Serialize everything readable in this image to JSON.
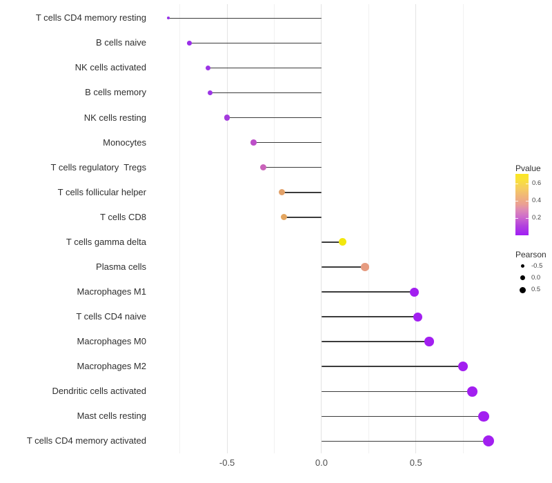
{
  "chart_data": {
    "type": "scatter",
    "subtype": "lollipop",
    "title": "",
    "xlabel": "",
    "ylabel": "",
    "xlim": [
      -0.895,
      0.965
    ],
    "x_major_ticks": [
      {
        "value": -0.5,
        "label": "-0.5"
      },
      {
        "value": 0.0,
        "label": "0.0"
      },
      {
        "value": 0.5,
        "label": "0.5"
      }
    ],
    "x_minor_gridlines": [
      -0.75,
      -0.25,
      0.25,
      0.75
    ],
    "grid": "vertical-only",
    "points": [
      {
        "label": "T cells CD4 memory resting",
        "pearson": -0.81,
        "pvalue_est": 0.01,
        "color": "#9732e8",
        "radius_px": 1.9
      },
      {
        "label": "B cells naive",
        "pearson": -0.7,
        "pvalue_est": 0.02,
        "color": "#9a2fe8",
        "radius_px": 3.3
      },
      {
        "label": "NK cells activated",
        "pearson": -0.6,
        "pvalue_est": 0.03,
        "color": "#9c35e5",
        "radius_px": 3.7
      },
      {
        "label": "B cells memory",
        "pearson": -0.59,
        "pvalue_est": 0.03,
        "color": "#9c35e5",
        "radius_px": 3.7
      },
      {
        "label": "NK cells resting",
        "pearson": -0.5,
        "pvalue_est": 0.06,
        "color": "#a43bdd",
        "radius_px": 4.3
      },
      {
        "label": "Monocytes",
        "pearson": -0.36,
        "pvalue_est": 0.13,
        "color": "#bc4ec8",
        "radius_px": 4.3
      },
      {
        "label": "T cells regulatory  Tregs",
        "pearson": -0.31,
        "pvalue_est": 0.18,
        "color": "#c963ba",
        "radius_px": 4.5
      },
      {
        "label": "T cells follicular helper",
        "pearson": -0.21,
        "pvalue_est": 0.38,
        "color": "#e2a169",
        "radius_px": 4.5
      },
      {
        "label": "T cells CD8",
        "pearson": -0.2,
        "pvalue_est": 0.4,
        "color": "#e3a55f",
        "radius_px": 4.6
      },
      {
        "label": "T cells gamma delta",
        "pearson": 0.11,
        "pvalue_est": 0.66,
        "color": "#f2e70d",
        "radius_px": 5.5
      },
      {
        "label": "Plasma cells",
        "pearson": 0.23,
        "pvalue_est": 0.44,
        "color": "#e69b80",
        "radius_px": 5.8
      },
      {
        "label": "Macrophages M1",
        "pearson": 0.49,
        "pvalue_est": 0.02,
        "color": "#a21ff0",
        "radius_px": 6.5
      },
      {
        "label": "T cells CD4 naive",
        "pearson": 0.51,
        "pvalue_est": 0.02,
        "color": "#a21ff0",
        "radius_px": 6.5
      },
      {
        "label": "Macrophages M0",
        "pearson": 0.57,
        "pvalue_est": 0.01,
        "color": "#a21ff0",
        "radius_px": 6.7
      },
      {
        "label": "Macrophages M2",
        "pearson": 0.75,
        "pvalue_est": 0.01,
        "color": "#a21ff0",
        "radius_px": 7.2
      },
      {
        "label": "Dendritic cells activated",
        "pearson": 0.8,
        "pvalue_est": 0.01,
        "color": "#a21ff0",
        "radius_px": 7.4
      },
      {
        "label": "Mast cells resting",
        "pearson": 0.86,
        "pvalue_est": 0.01,
        "color": "#a21ff0",
        "radius_px": 7.8
      },
      {
        "label": "T cells CD4 memory activated",
        "pearson": 0.885,
        "pvalue_est": 0.01,
        "color": "#a21ff0",
        "radius_px": 8.0
      }
    ],
    "legend": {
      "position": "right",
      "pvalue": {
        "title": "Pvalue",
        "range": [
          0,
          0.71
        ],
        "ticks": [
          {
            "value": 0.6,
            "label": "0.6"
          },
          {
            "value": 0.4,
            "label": "0.4"
          },
          {
            "value": 0.2,
            "label": "0.2"
          }
        ],
        "gradient_stops": [
          {
            "pos": 0,
            "color": "#a01ef5"
          },
          {
            "pos": 0.15,
            "color": "#b23fde"
          },
          {
            "pos": 0.3,
            "color": "#ce6ccb"
          },
          {
            "pos": 0.42,
            "color": "#de8bb4"
          },
          {
            "pos": 0.5,
            "color": "#ea9f94"
          },
          {
            "pos": 0.62,
            "color": "#f0b27c"
          },
          {
            "pos": 0.76,
            "color": "#f5cc62"
          },
          {
            "pos": 0.9,
            "color": "#f9e13b"
          },
          {
            "pos": 1,
            "color": "#fbe723"
          }
        ]
      },
      "pearson": {
        "title": "Pearson",
        "items": [
          {
            "label": "-0.5",
            "radius_px": 2.5
          },
          {
            "label": "0.0",
            "radius_px": 3.5
          },
          {
            "label": "0.5",
            "radius_px": 4.5
          }
        ],
        "dot_color": "#000000"
      }
    }
  },
  "colors": {
    "background": "#ffffff",
    "stem": "#3a3a3a",
    "grid_major": "#e3e3e3",
    "grid_minor": "#f1f1f1",
    "y_label_text": "#2f2f2f",
    "x_tick_text": "#4d4d4d",
    "legend_text": "#444444"
  }
}
